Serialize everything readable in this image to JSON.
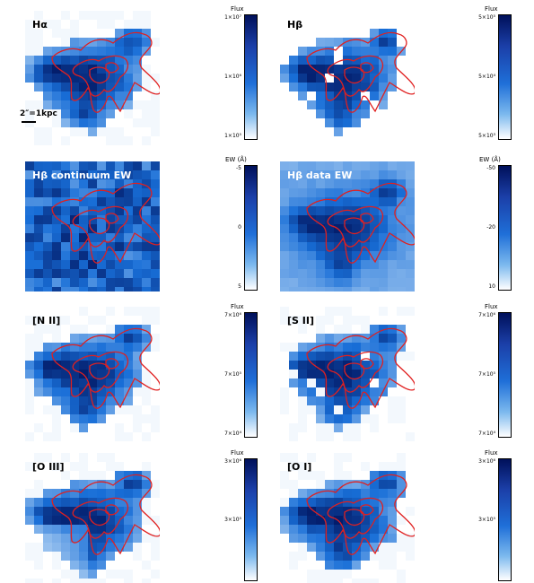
{
  "colors": {
    "contour": "#e02020",
    "map_low": "#d9ecfb",
    "map_high": "#00105a"
  },
  "panels": [
    {
      "label": "Hα",
      "cbar_title": "Flux",
      "ticks": [
        "1×10⁷",
        "1×10⁶",
        "1×10⁵"
      ],
      "label_tone": "dark",
      "style": "flux"
    },
    {
      "label": "Hβ",
      "cbar_title": "Flux",
      "ticks": [
        "5×10⁵",
        "5×10⁴",
        "5×10³"
      ],
      "label_tone": "dark",
      "style": "sparse"
    },
    {
      "label": "Hβ continuum EW",
      "cbar_title": "EW (Å)",
      "ticks": [
        "-5",
        "0",
        "5"
      ],
      "label_tone": "light",
      "style": "full-noisy"
    },
    {
      "label": "Hβ data EW",
      "cbar_title": "EW (Å)",
      "ticks": [
        "-50",
        "-20",
        "10"
      ],
      "label_tone": "light",
      "style": "full-smooth"
    },
    {
      "label": "[N II]",
      "cbar_title": "Flux",
      "ticks": [
        "7×10⁶",
        "7×10⁵",
        "7×10⁴"
      ],
      "label_tone": "dark",
      "style": "flux"
    },
    {
      "label": "[S II]",
      "cbar_title": "Flux",
      "ticks": [
        "7×10⁶",
        "7×10⁵",
        "7×10⁴"
      ],
      "label_tone": "dark",
      "style": "flux-holes"
    },
    {
      "label": "[O III]",
      "cbar_title": "Flux",
      "ticks": [
        "3×10⁶",
        "3×10⁵",
        ""
      ],
      "label_tone": "dark",
      "style": "oiii"
    },
    {
      "label": "[O I]",
      "cbar_title": "Flux",
      "ticks": [
        "3×10⁶",
        "3×10⁵",
        ""
      ],
      "label_tone": "dark",
      "style": "flux"
    }
  ],
  "scale_label": "2″=1kpc"
}
